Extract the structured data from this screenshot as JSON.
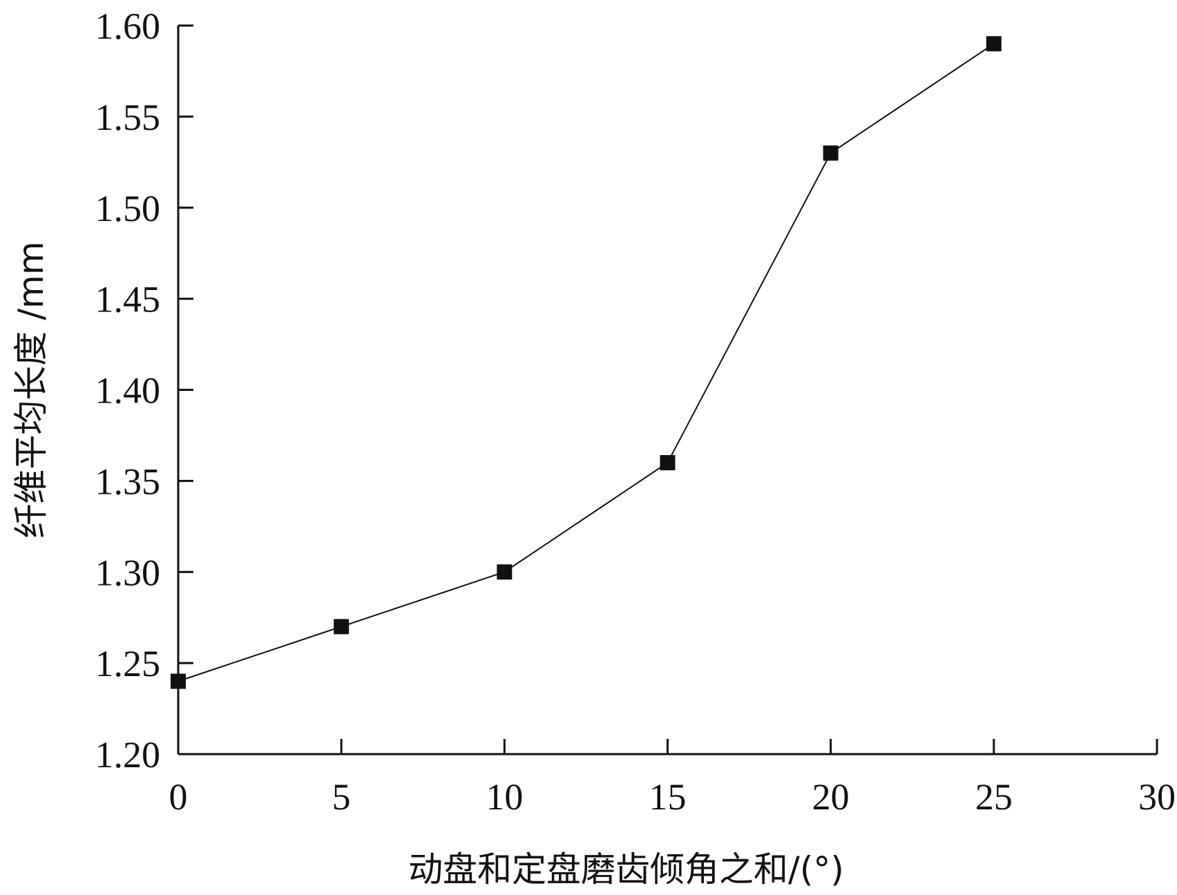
{
  "chart_data": {
    "type": "line",
    "xlabel": "动盘和定盘磨齿倾角之和/(°)",
    "ylabel": "纤维平均长度 /mm",
    "xlim": [
      0,
      30
    ],
    "ylim": [
      1.2,
      1.6
    ],
    "x_ticks": [
      "0",
      "5",
      "10",
      "15",
      "20",
      "25",
      "30"
    ],
    "y_ticks": [
      "1.20",
      "1.25",
      "1.30",
      "1.35",
      "1.40",
      "1.45",
      "1.50",
      "1.55",
      "1.60"
    ],
    "grid": false,
    "marker": "square",
    "series": [
      {
        "x": [
          0,
          5,
          10,
          15,
          20,
          25
        ],
        "values": [
          1.24,
          1.27,
          1.3,
          1.36,
          1.53,
          1.59
        ]
      }
    ]
  }
}
